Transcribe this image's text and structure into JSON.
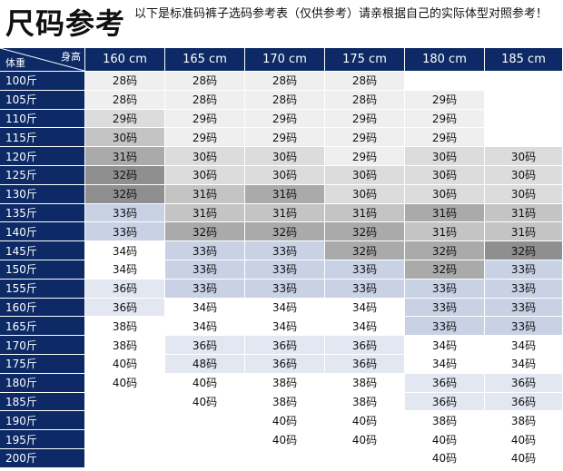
{
  "title": "尺码参考",
  "note": "以下是标准码裤子选码参考表（仅供参考）请亲根据自己的实际体型对照参考！",
  "header": {
    "corner_height": "身高",
    "corner_weight": "体重",
    "columns": [
      "160 cm",
      "165 cm",
      "170 cm",
      "175 cm",
      "180 cm",
      "185 cm"
    ]
  },
  "shades": {
    "w": "#ffffff",
    "l1": "#efefef",
    "l2": "#dcdcdc",
    "g1": "#c4c4c4",
    "g2": "#aaaaaa",
    "g3": "#8f8f8f",
    "b1": "#e2e7f2",
    "b2": "#c9d1e5",
    "b3": "#a8b4d2"
  },
  "rows": [
    {
      "weight": "100斤",
      "cells": [
        {
          "v": "28码",
          "s": "l1"
        },
        {
          "v": "28码",
          "s": "l1"
        },
        {
          "v": "28码",
          "s": "l1"
        },
        {
          "v": "28码",
          "s": "l1"
        },
        {
          "v": "",
          "s": "w"
        },
        {
          "v": "",
          "s": "w"
        }
      ]
    },
    {
      "weight": "105斤",
      "cells": [
        {
          "v": "28码",
          "s": "l1"
        },
        {
          "v": "28码",
          "s": "l1"
        },
        {
          "v": "28码",
          "s": "l1"
        },
        {
          "v": "28码",
          "s": "l1"
        },
        {
          "v": "29码",
          "s": "l1"
        },
        {
          "v": "",
          "s": "w"
        }
      ]
    },
    {
      "weight": "110斤",
      "cells": [
        {
          "v": "29码",
          "s": "l2"
        },
        {
          "v": "29码",
          "s": "l1"
        },
        {
          "v": "29码",
          "s": "l1"
        },
        {
          "v": "29码",
          "s": "l1"
        },
        {
          "v": "29码",
          "s": "l1"
        },
        {
          "v": "",
          "s": "w"
        }
      ]
    },
    {
      "weight": "115斤",
      "cells": [
        {
          "v": "30码",
          "s": "g1"
        },
        {
          "v": "29码",
          "s": "l1"
        },
        {
          "v": "29码",
          "s": "l1"
        },
        {
          "v": "29码",
          "s": "l1"
        },
        {
          "v": "29码",
          "s": "l1"
        },
        {
          "v": "",
          "s": "w"
        }
      ]
    },
    {
      "weight": "120斤",
      "cells": [
        {
          "v": "31码",
          "s": "g2"
        },
        {
          "v": "30码",
          "s": "l2"
        },
        {
          "v": "30码",
          "s": "l2"
        },
        {
          "v": "29码",
          "s": "l1"
        },
        {
          "v": "30码",
          "s": "l2"
        },
        {
          "v": "30码",
          "s": "l2"
        }
      ]
    },
    {
      "weight": "125斤",
      "cells": [
        {
          "v": "32码",
          "s": "g3"
        },
        {
          "v": "30码",
          "s": "l2"
        },
        {
          "v": "30码",
          "s": "l2"
        },
        {
          "v": "30码",
          "s": "l2"
        },
        {
          "v": "30码",
          "s": "l2"
        },
        {
          "v": "30码",
          "s": "l2"
        }
      ]
    },
    {
      "weight": "130斤",
      "cells": [
        {
          "v": "32码",
          "s": "g3"
        },
        {
          "v": "31码",
          "s": "g1"
        },
        {
          "v": "31码",
          "s": "g2"
        },
        {
          "v": "30码",
          "s": "l2"
        },
        {
          "v": "30码",
          "s": "l2"
        },
        {
          "v": "30码",
          "s": "l2"
        }
      ]
    },
    {
      "weight": "135斤",
      "cells": [
        {
          "v": "33码",
          "s": "b2"
        },
        {
          "v": "31码",
          "s": "g1"
        },
        {
          "v": "31码",
          "s": "g1"
        },
        {
          "v": "31码",
          "s": "g1"
        },
        {
          "v": "31码",
          "s": "g2"
        },
        {
          "v": "31码",
          "s": "g1"
        }
      ]
    },
    {
      "weight": "140斤",
      "cells": [
        {
          "v": "33码",
          "s": "b2"
        },
        {
          "v": "32码",
          "s": "g2"
        },
        {
          "v": "32码",
          "s": "g2"
        },
        {
          "v": "32码",
          "s": "g2"
        },
        {
          "v": "31码",
          "s": "g1"
        },
        {
          "v": "31码",
          "s": "g1"
        }
      ]
    },
    {
      "weight": "145斤",
      "cells": [
        {
          "v": "34码",
          "s": "w"
        },
        {
          "v": "33码",
          "s": "b2"
        },
        {
          "v": "33码",
          "s": "b2"
        },
        {
          "v": "32码",
          "s": "g2"
        },
        {
          "v": "32码",
          "s": "g2"
        },
        {
          "v": "32码",
          "s": "g3"
        }
      ]
    },
    {
      "weight": "150斤",
      "cells": [
        {
          "v": "34码",
          "s": "w"
        },
        {
          "v": "33码",
          "s": "b2"
        },
        {
          "v": "33码",
          "s": "b2"
        },
        {
          "v": "33码",
          "s": "b2"
        },
        {
          "v": "32码",
          "s": "g2"
        },
        {
          "v": "33码",
          "s": "b2"
        }
      ]
    },
    {
      "weight": "155斤",
      "cells": [
        {
          "v": "36码",
          "s": "b1"
        },
        {
          "v": "33码",
          "s": "b2"
        },
        {
          "v": "33码",
          "s": "b2"
        },
        {
          "v": "33码",
          "s": "b2"
        },
        {
          "v": "33码",
          "s": "b2"
        },
        {
          "v": "33码",
          "s": "b2"
        }
      ]
    },
    {
      "weight": "160斤",
      "cells": [
        {
          "v": "36码",
          "s": "b1"
        },
        {
          "v": "34码",
          "s": "w"
        },
        {
          "v": "34码",
          "s": "w"
        },
        {
          "v": "34码",
          "s": "w"
        },
        {
          "v": "33码",
          "s": "b2"
        },
        {
          "v": "33码",
          "s": "b2"
        }
      ]
    },
    {
      "weight": "165斤",
      "cells": [
        {
          "v": "38码",
          "s": "w"
        },
        {
          "v": "34码",
          "s": "w"
        },
        {
          "v": "34码",
          "s": "w"
        },
        {
          "v": "34码",
          "s": "w"
        },
        {
          "v": "33码",
          "s": "b2"
        },
        {
          "v": "33码",
          "s": "b2"
        }
      ]
    },
    {
      "weight": "170斤",
      "cells": [
        {
          "v": "38码",
          "s": "w"
        },
        {
          "v": "36码",
          "s": "b1"
        },
        {
          "v": "36码",
          "s": "b1"
        },
        {
          "v": "36码",
          "s": "b1"
        },
        {
          "v": "34码",
          "s": "w"
        },
        {
          "v": "34码",
          "s": "w"
        }
      ]
    },
    {
      "weight": "175斤",
      "cells": [
        {
          "v": "40码",
          "s": "w"
        },
        {
          "v": "48码",
          "s": "b1"
        },
        {
          "v": "36码",
          "s": "b1"
        },
        {
          "v": "36码",
          "s": "b1"
        },
        {
          "v": "34码",
          "s": "w"
        },
        {
          "v": "34码",
          "s": "w"
        }
      ]
    },
    {
      "weight": "180斤",
      "cells": [
        {
          "v": "40码",
          "s": "w"
        },
        {
          "v": "40码",
          "s": "w"
        },
        {
          "v": "38码",
          "s": "w"
        },
        {
          "v": "38码",
          "s": "w"
        },
        {
          "v": "36码",
          "s": "b1"
        },
        {
          "v": "36码",
          "s": "b1"
        }
      ]
    },
    {
      "weight": "185斤",
      "cells": [
        {
          "v": "",
          "s": "w"
        },
        {
          "v": "40码",
          "s": "w"
        },
        {
          "v": "38码",
          "s": "w"
        },
        {
          "v": "38码",
          "s": "w"
        },
        {
          "v": "36码",
          "s": "b1"
        },
        {
          "v": "36码",
          "s": "b1"
        }
      ]
    },
    {
      "weight": "190斤",
      "cells": [
        {
          "v": "",
          "s": "w"
        },
        {
          "v": "",
          "s": "w"
        },
        {
          "v": "40码",
          "s": "w"
        },
        {
          "v": "40码",
          "s": "w"
        },
        {
          "v": "38码",
          "s": "w"
        },
        {
          "v": "38码",
          "s": "w"
        }
      ]
    },
    {
      "weight": "195斤",
      "cells": [
        {
          "v": "",
          "s": "w"
        },
        {
          "v": "",
          "s": "w"
        },
        {
          "v": "40码",
          "s": "w"
        },
        {
          "v": "40码",
          "s": "w"
        },
        {
          "v": "40码",
          "s": "w"
        },
        {
          "v": "40码",
          "s": "w"
        }
      ]
    },
    {
      "weight": "200斤",
      "cells": [
        {
          "v": "",
          "s": "w"
        },
        {
          "v": "",
          "s": "w"
        },
        {
          "v": "",
          "s": "w"
        },
        {
          "v": "",
          "s": "w"
        },
        {
          "v": "40码",
          "s": "w"
        },
        {
          "v": "40码",
          "s": "w"
        }
      ]
    }
  ]
}
